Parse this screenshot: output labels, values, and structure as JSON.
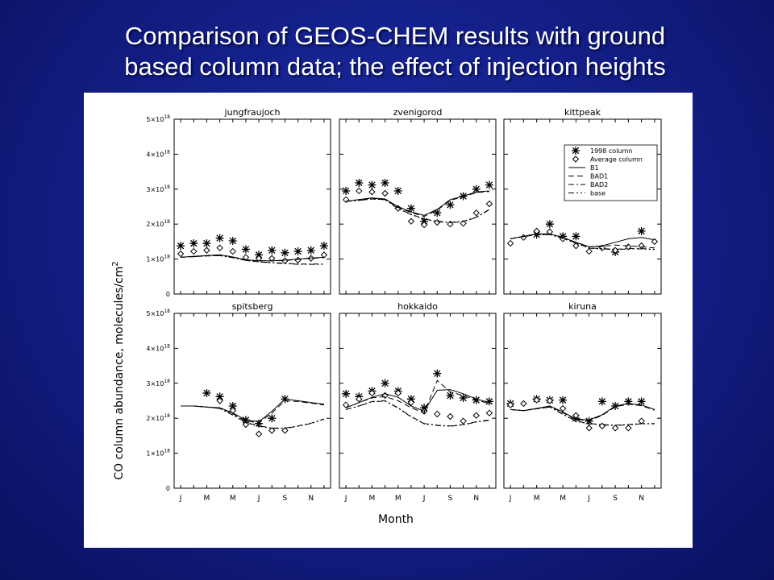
{
  "slide": {
    "title_line1": "Comparison of GEOS-CHEM results with ground",
    "title_line2": "based column data; the effect of injection heights"
  },
  "colors": {
    "background": "#14208a",
    "title_text": "#ffffff",
    "figure_background": "#ffffff",
    "ink": "#000000"
  },
  "figure": {
    "ylabel": "CO column abundance, molecules/cm",
    "ylabel_superscript": "2",
    "xlabel": "Month",
    "yticks": [
      "0",
      "1×10",
      "2×10",
      "3×10",
      "4×10",
      "5×10"
    ],
    "ytick_exponent": "18",
    "xticks": [
      "J",
      "M",
      "M",
      "J",
      "S",
      "N"
    ]
  },
  "chart_data": [
    {
      "type": "line",
      "title": "jungfraujoch",
      "ylim": [
        0,
        5e+18
      ],
      "x": [
        1,
        2,
        3,
        4,
        5,
        6,
        7,
        8,
        9,
        10,
        11,
        12
      ],
      "series": [
        {
          "name": "1998 column",
          "style": "asterisk",
          "values": [
            1.38e+18,
            1.45e+18,
            1.45e+18,
            1.6e+18,
            1.52e+18,
            1.28e+18,
            1.12e+18,
            1.25e+18,
            1.18e+18,
            1.22e+18,
            1.25e+18,
            1.38e+18
          ]
        },
        {
          "name": "Average column",
          "style": "diamond",
          "values": [
            1.15e+18,
            1.22e+18,
            1.25e+18,
            1.32e+18,
            1.22e+18,
            1.05e+18,
            1.02e+18,
            1.02e+18,
            9.5e+17,
            9.7e+17,
            1.02e+18,
            1.12e+18
          ]
        },
        {
          "name": "B1",
          "style": "solid",
          "values": [
            1.05e+18,
            1.08e+18,
            1.1e+18,
            1.12e+18,
            1.06e+18,
            9.8e+17,
            9.5e+17,
            9.5e+17,
            9.7e+17,
            1e+18,
            1.03e+18,
            1.05e+18
          ]
        },
        {
          "name": "BAD1",
          "style": "dash",
          "values": [
            1.05e+18,
            1.07e+18,
            1.1e+18,
            1.12e+18,
            1.06e+18,
            9.8e+17,
            9.5e+17,
            9.5e+17,
            9.6e+17,
            9.9e+17,
            1.02e+18,
            1.04e+18
          ]
        },
        {
          "name": "BAD2",
          "style": "dashdot",
          "values": [
            1.05e+18,
            1.07e+18,
            1.09e+18,
            1.1e+18,
            1.04e+18,
            9.6e+17,
            9.2e+17,
            9e+17,
            8.8e+17,
            8.6e+17,
            8.6e+17,
            8.6e+17
          ]
        },
        {
          "name": "base",
          "style": "dashdotdot",
          "values": [
            1.05e+18,
            1.07e+18,
            1.09e+18,
            1.1e+18,
            1.04e+18,
            9.6e+17,
            9.2e+17,
            8.9e+17,
            8.7e+17,
            8.5e+17,
            8.5e+17,
            8.5e+17
          ]
        }
      ]
    },
    {
      "type": "line",
      "title": "zvenigorod",
      "ylim": [
        0,
        5e+18
      ],
      "x": [
        1,
        2,
        3,
        4,
        5,
        6,
        7,
        8,
        9,
        10,
        11,
        12
      ],
      "series": [
        {
          "name": "1998 column",
          "style": "asterisk",
          "values": [
            2.95e+18,
            3.18e+18,
            3.12e+18,
            3.18e+18,
            2.95e+18,
            2.45e+18,
            2.08e+18,
            2.32e+18,
            2.55e+18,
            2.8e+18,
            3e+18,
            3.12e+18
          ]
        },
        {
          "name": "Average column",
          "style": "diamond",
          "values": [
            2.7e+18,
            2.95e+18,
            2.92e+18,
            2.88e+18,
            2.45e+18,
            2.08e+18,
            1.98e+18,
            2.05e+18,
            2e+18,
            2.02e+18,
            2.32e+18,
            2.58e+18
          ]
        },
        {
          "name": "B1",
          "style": "solid",
          "values": [
            2.65e+18,
            2.7e+18,
            2.75e+18,
            2.72e+18,
            2.5e+18,
            2.35e+18,
            2.25e+18,
            2.42e+18,
            2.7e+18,
            2.8e+18,
            2.92e+18,
            2.95e+18
          ]
        },
        {
          "name": "BAD1",
          "style": "dash",
          "values": [
            2.65e+18,
            2.7e+18,
            2.74e+18,
            2.7e+18,
            2.48e+18,
            2.33e+18,
            2.22e+18,
            2.4e+18,
            2.68e+18,
            2.78e+18,
            2.9e+18,
            2.93e+18
          ]
        },
        {
          "name": "BAD2",
          "style": "dashdot",
          "values": [
            2.65e+18,
            2.68e+18,
            2.72e+18,
            2.7e+18,
            2.45e+18,
            2.28e+18,
            2.15e+18,
            2.08e+18,
            2.05e+18,
            2.08e+18,
            2.2e+18,
            2.42e+18
          ]
        },
        {
          "name": "base",
          "style": "dashdotdot",
          "values": [
            2.65e+18,
            2.68e+18,
            2.72e+18,
            2.7e+18,
            2.44e+18,
            2.27e+18,
            2.14e+18,
            2.07e+18,
            2.04e+18,
            2.07e+18,
            2.19e+18,
            2.41e+18
          ]
        }
      ]
    },
    {
      "type": "line",
      "title": "kittpeak",
      "ylim": [
        0,
        5e+18
      ],
      "x": [
        1,
        2,
        3,
        4,
        5,
        6,
        7,
        8,
        9,
        10,
        11,
        12
      ],
      "legend_position": "top-right",
      "series": [
        {
          "name": "1998 column",
          "style": "asterisk",
          "values": [
            null,
            null,
            1.7e+18,
            2e+18,
            1.65e+18,
            1.65e+18,
            null,
            null,
            1.2e+18,
            null,
            1.8e+18,
            null
          ]
        },
        {
          "name": "Average column",
          "style": "diamond",
          "values": [
            1.45e+18,
            1.62e+18,
            1.8e+18,
            1.78e+18,
            1.58e+18,
            1.38e+18,
            1.22e+18,
            1.32e+18,
            1.25e+18,
            1.35e+18,
            1.38e+18,
            1.5e+18
          ]
        },
        {
          "name": "B1",
          "style": "solid",
          "values": [
            1.58e+18,
            1.65e+18,
            1.72e+18,
            1.72e+18,
            1.62e+18,
            1.48e+18,
            1.35e+18,
            1.38e+18,
            1.48e+18,
            1.58e+18,
            1.62e+18,
            1.55e+18
          ]
        },
        {
          "name": "BAD1",
          "style": "dash",
          "values": [
            1.58e+18,
            1.65e+18,
            1.72e+18,
            1.72e+18,
            1.62e+18,
            1.48e+18,
            1.35e+18,
            1.36e+18,
            1.4e+18,
            1.38e+18,
            1.35e+18,
            1.32e+18
          ]
        },
        {
          "name": "BAD2",
          "style": "dashdot",
          "values": [
            1.58e+18,
            1.64e+18,
            1.7e+18,
            1.7e+18,
            1.6e+18,
            1.46e+18,
            1.32e+18,
            1.3e+18,
            1.28e+18,
            1.3e+18,
            1.3e+18,
            1.28e+18
          ]
        },
        {
          "name": "base",
          "style": "dashdotdot",
          "values": [
            1.58e+18,
            1.64e+18,
            1.7e+18,
            1.7e+18,
            1.59e+18,
            1.45e+18,
            1.31e+18,
            1.29e+18,
            1.27e+18,
            1.29e+18,
            1.29e+18,
            1.27e+18
          ]
        }
      ]
    },
    {
      "type": "line",
      "title": "spitsberg",
      "ylim": [
        0,
        5e+18
      ],
      "x": [
        1,
        2,
        3,
        4,
        5,
        6,
        7,
        8,
        9,
        10,
        11,
        12
      ],
      "series": [
        {
          "name": "1998 column",
          "style": "asterisk",
          "values": [
            null,
            null,
            2.72e+18,
            2.62e+18,
            2.35e+18,
            1.95e+18,
            1.85e+18,
            2e+18,
            2.55e+18,
            null,
            null,
            null
          ]
        },
        {
          "name": "Average column",
          "style": "diamond",
          "values": [
            null,
            null,
            null,
            2.5e+18,
            2.22e+18,
            1.82e+18,
            1.55e+18,
            1.65e+18,
            1.65e+18,
            null,
            null,
            null
          ]
        },
        {
          "name": "B1",
          "style": "solid",
          "values": [
            2.35e+18,
            2.35e+18,
            2.32e+18,
            2.3e+18,
            2.15e+18,
            1.95e+18,
            1.9e+18,
            2.2e+18,
            2.55e+18,
            2.5e+18,
            2.45e+18,
            2.4e+18
          ]
        },
        {
          "name": "BAD1",
          "style": "dash",
          "values": [
            2.35e+18,
            2.35e+18,
            2.32e+18,
            2.3e+18,
            2.13e+18,
            1.92e+18,
            1.87e+18,
            2.15e+18,
            2.5e+18,
            2.48e+18,
            2.43e+18,
            2.38e+18
          ]
        },
        {
          "name": "BAD2",
          "style": "dashdot",
          "values": [
            2.35e+18,
            2.35e+18,
            2.32e+18,
            2.28e+18,
            2.1e+18,
            1.88e+18,
            1.78e+18,
            1.72e+18,
            1.72e+18,
            1.78e+18,
            1.86e+18,
            1.98e+18
          ]
        },
        {
          "name": "base",
          "style": "dashdotdot",
          "values": [
            2.35e+18,
            2.35e+18,
            2.32e+18,
            2.28e+18,
            2.09e+18,
            1.87e+18,
            1.77e+18,
            1.71e+18,
            1.71e+18,
            1.77e+18,
            1.85e+18,
            1.97e+18
          ]
        }
      ]
    },
    {
      "type": "line",
      "title": "hokkaido",
      "ylim": [
        0,
        5e+18
      ],
      "x": [
        1,
        2,
        3,
        4,
        5,
        6,
        7,
        8,
        9,
        10,
        11,
        12
      ],
      "series": [
        {
          "name": "1998 column",
          "style": "asterisk",
          "values": [
            2.7e+18,
            2.62e+18,
            2.78e+18,
            3e+18,
            2.78e+18,
            2.55e+18,
            2.3e+18,
            3.28e+18,
            2.65e+18,
            2.58e+18,
            2.52e+18,
            2.48e+18
          ]
        },
        {
          "name": "Average column",
          "style": "diamond",
          "values": [
            2.38e+18,
            2.55e+18,
            2.72e+18,
            2.65e+18,
            2.72e+18,
            2.45e+18,
            2.2e+18,
            2.12e+18,
            2.05e+18,
            1.92e+18,
            2.08e+18,
            2.15e+18
          ]
        },
        {
          "name": "B1",
          "style": "solid",
          "values": [
            2.3e+18,
            2.45e+18,
            2.6e+18,
            2.7e+18,
            2.6e+18,
            2.35e+18,
            2.2e+18,
            2.8e+18,
            2.82e+18,
            2.7e+18,
            2.55e+18,
            2.45e+18
          ]
        },
        {
          "name": "BAD1",
          "style": "dash",
          "values": [
            2.3e+18,
            2.45e+18,
            2.58e+18,
            2.62e+18,
            2.5e+18,
            2.3e+18,
            2.15e+18,
            3.08e+18,
            2.75e+18,
            2.65e+18,
            2.52e+18,
            2.42e+18
          ]
        },
        {
          "name": "BAD2",
          "style": "dashdot",
          "values": [
            2.25e+18,
            2.35e+18,
            2.48e+18,
            2.5e+18,
            2.3e+18,
            2.05e+18,
            1.85e+18,
            1.8e+18,
            1.78e+18,
            1.82e+18,
            1.9e+18,
            1.95e+18
          ]
        },
        {
          "name": "base",
          "style": "dashdotdot",
          "values": [
            2.25e+18,
            2.35e+18,
            2.47e+18,
            2.49e+18,
            2.29e+18,
            2.04e+18,
            1.84e+18,
            1.79e+18,
            1.77e+18,
            1.81e+18,
            1.89e+18,
            1.94e+18
          ]
        }
      ]
    },
    {
      "type": "line",
      "title": "kiruna",
      "ylim": [
        0,
        5e+18
      ],
      "x": [
        1,
        2,
        3,
        4,
        5,
        6,
        7,
        8,
        9,
        10,
        11,
        12
      ],
      "series": [
        {
          "name": "1998 column",
          "style": "asterisk",
          "values": [
            2.42e+18,
            null,
            2.55e+18,
            2.52e+18,
            2.52e+18,
            2e+18,
            1.92e+18,
            2.48e+18,
            2.35e+18,
            2.48e+18,
            2.48e+18,
            null
          ]
        },
        {
          "name": "Average column",
          "style": "diamond",
          "values": [
            2.38e+18,
            2.42e+18,
            2.52e+18,
            2.5e+18,
            2.28e+18,
            2.08e+18,
            1.72e+18,
            1.78e+18,
            1.72e+18,
            1.72e+18,
            1.92e+18,
            null
          ]
        },
        {
          "name": "B1",
          "style": "solid",
          "values": [
            2.25e+18,
            2.22e+18,
            2.28e+18,
            2.35e+18,
            2.18e+18,
            1.98e+18,
            1.95e+18,
            2.1e+18,
            2.35e+18,
            2.42e+18,
            2.38e+18,
            2.25e+18
          ]
        },
        {
          "name": "BAD1",
          "style": "dash",
          "values": [
            2.25e+18,
            2.22e+18,
            2.28e+18,
            2.34e+18,
            2.16e+18,
            1.96e+18,
            1.93e+18,
            2.08e+18,
            2.33e+18,
            2.4e+18,
            2.36e+18,
            2.23e+18
          ]
        },
        {
          "name": "BAD2",
          "style": "dashdot",
          "values": [
            2.25e+18,
            2.22e+18,
            2.27e+18,
            2.32e+18,
            2.12e+18,
            1.92e+18,
            1.85e+18,
            1.82e+18,
            1.8e+18,
            1.82e+18,
            1.85e+18,
            1.85e+18
          ]
        },
        {
          "name": "base",
          "style": "dashdotdot",
          "values": [
            2.25e+18,
            2.22e+18,
            2.27e+18,
            2.32e+18,
            2.11e+18,
            1.91e+18,
            1.84e+18,
            1.81e+18,
            1.79e+18,
            1.81e+18,
            1.84e+18,
            1.84e+18
          ]
        }
      ]
    }
  ]
}
